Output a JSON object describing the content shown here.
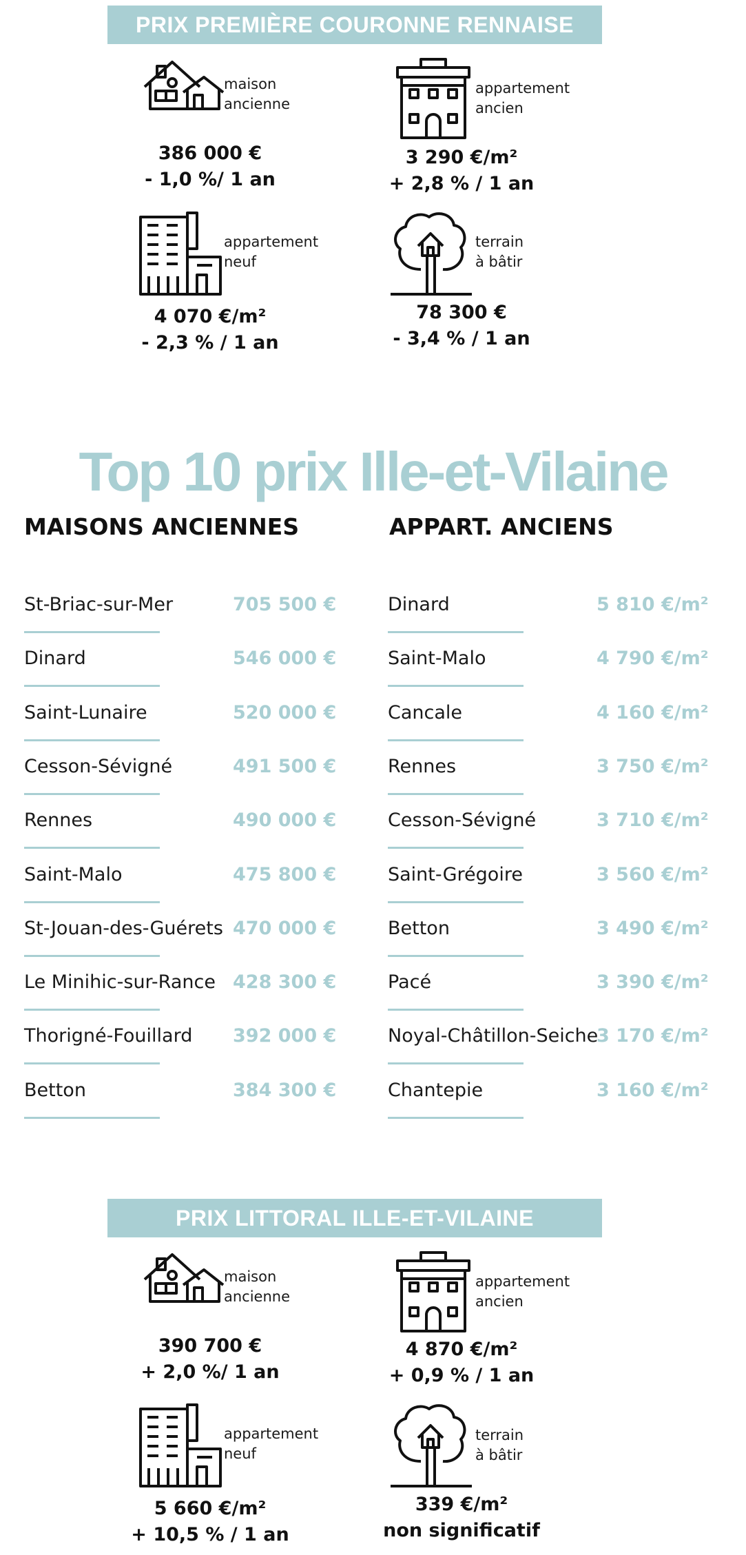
{
  "accent_color": "#a9cfd3",
  "section1": {
    "banner": "PRIX PREMIÈRE COURONNE RENNAISE",
    "items": [
      {
        "icon": "house-icon",
        "label_1": "maison",
        "label_2": "ancienne",
        "price": "386 000 €",
        "change": "- 1,0 %/ 1 an"
      },
      {
        "icon": "apartment-building-icon",
        "label_1": "appartement",
        "label_2": "ancien",
        "price": "3 290 €/m²",
        "change": "+ 2,8 % / 1 an"
      },
      {
        "icon": "new-building-icon",
        "label_1": "appartement",
        "label_2": "neuf",
        "price": "4 070 €/m²",
        "change": "- 2,3 % / 1 an"
      },
      {
        "icon": "tree-house-icon",
        "label_1": "terrain",
        "label_2": "à bâtir",
        "price": "78 300 €",
        "change": "- 3,4 % / 1 an"
      }
    ]
  },
  "top10": {
    "title": "Top 10 prix Ille-et-Vilaine",
    "houses": {
      "heading": "MAISONS ANCIENNES",
      "rows": [
        {
          "place": "St-Briac-sur-Mer",
          "value": "705 500 €"
        },
        {
          "place": "Dinard",
          "value": "546 000 €"
        },
        {
          "place": "Saint-Lunaire",
          "value": "520 000 €"
        },
        {
          "place": "Cesson-Sévigné",
          "value": "491 500 €"
        },
        {
          "place": "Rennes",
          "value": "490 000 €"
        },
        {
          "place": "Saint-Malo",
          "value": "475 800 €"
        },
        {
          "place": "St-Jouan-des-Guérets",
          "value": "470 000 €"
        },
        {
          "place": "Le Minihic-sur-Rance",
          "value": "428 300 €"
        },
        {
          "place": "Thorigné-Fouillard",
          "value": "392 000 €"
        },
        {
          "place": "Betton",
          "value": "384 300 €"
        }
      ]
    },
    "apartments": {
      "heading": "APPART. ANCIENS",
      "rows": [
        {
          "place": "Dinard",
          "value": "5 810 €/m²"
        },
        {
          "place": "Saint-Malo",
          "value": "4 790 €/m²"
        },
        {
          "place": "Cancale",
          "value": "4 160 €/m²"
        },
        {
          "place": "Rennes",
          "value": "3 750 €/m²"
        },
        {
          "place": "Cesson-Sévigné",
          "value": "3 710 €/m²"
        },
        {
          "place": "Saint-Grégoire",
          "value": "3 560 €/m²"
        },
        {
          "place": "Betton",
          "value": "3 490 €/m²"
        },
        {
          "place": "Pacé",
          "value": "3 390 €/m²"
        },
        {
          "place": "Noyal-Châtillon-Seiche",
          "value": "3 170 €/m²"
        },
        {
          "place": "Chantepie",
          "value": "3 160 €/m²"
        }
      ]
    }
  },
  "section2": {
    "banner": "PRIX LITTORAL ILLE-ET-VILAINE",
    "items": [
      {
        "icon": "house-icon",
        "label_1": "maison",
        "label_2": "ancienne",
        "price": "390 700 €",
        "change": "+ 2,0 %/ 1 an"
      },
      {
        "icon": "apartment-building-icon",
        "label_1": "appartement",
        "label_2": "ancien",
        "price": "4 870 €/m²",
        "change": "+ 0,9 % / 1 an"
      },
      {
        "icon": "new-building-icon",
        "label_1": "appartement",
        "label_2": "neuf",
        "price": "5 660 €/m²",
        "change": "+ 10,5 % / 1 an"
      },
      {
        "icon": "tree-house-icon",
        "label_1": "terrain",
        "label_2": "à bâtir",
        "price": "339 €/m²",
        "change": "non significatif"
      }
    ]
  }
}
